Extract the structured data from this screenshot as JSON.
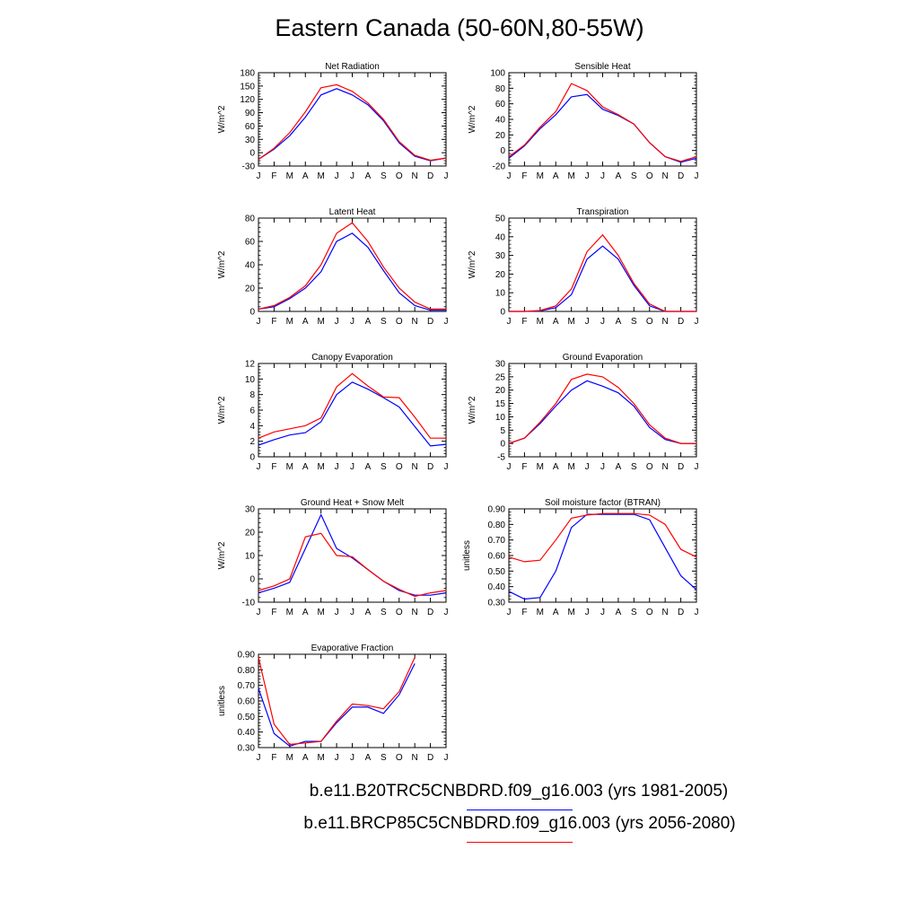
{
  "page": {
    "title": "Eastern Canada (50-60N,80-55W)"
  },
  "colors": {
    "series_0": "#0000ff",
    "series_1": "#ff0000"
  },
  "legend": [
    {
      "label": "b.e11.B20TRC5CNBDRD.f09_g16.003 (yrs 1981-2005)",
      "color": "#0000ff"
    },
    {
      "label": "b.e11.BRCP85C5CNBDRD.f09_g16.003 (yrs 2056-2080)",
      "color": "#ff0000"
    }
  ],
  "chart_data": [
    {
      "type": "line",
      "title": "Net Radiation",
      "ylabel": "W/m^2",
      "x": [
        "J",
        "F",
        "M",
        "A",
        "M",
        "J",
        "J",
        "A",
        "S",
        "O",
        "N",
        "D",
        "J"
      ],
      "ylim": [
        -30,
        180
      ],
      "yticks": [
        "-30",
        "0",
        "30",
        "60",
        "90",
        "120",
        "150",
        "180"
      ],
      "ytick_values": [
        -30,
        0,
        30,
        60,
        90,
        120,
        150,
        180
      ],
      "series": [
        {
          "values": [
            -15,
            8,
            38,
            80,
            130,
            144,
            130,
            108,
            72,
            22,
            -8,
            -18,
            -12
          ]
        },
        {
          "values": [
            -15,
            10,
            45,
            92,
            146,
            153,
            138,
            112,
            75,
            25,
            -6,
            -17,
            -12
          ]
        }
      ]
    },
    {
      "type": "line",
      "title": "Sensible Heat",
      "ylabel": "W/m^2",
      "x": [
        "J",
        "F",
        "M",
        "A",
        "M",
        "J",
        "J",
        "A",
        "S",
        "O",
        "N",
        "D",
        "J"
      ],
      "ylim": [
        -20,
        100
      ],
      "yticks": [
        "-20",
        "0",
        "20",
        "40",
        "60",
        "80",
        "100"
      ],
      "ytick_values": [
        -20,
        0,
        20,
        40,
        60,
        80,
        100
      ],
      "series": [
        {
          "values": [
            -10,
            6,
            28,
            46,
            69,
            72,
            53,
            45,
            34,
            10,
            -8,
            -15,
            -10
          ]
        },
        {
          "values": [
            -8,
            7,
            30,
            50,
            86,
            77,
            56,
            46,
            34,
            10,
            -8,
            -14,
            -8
          ]
        }
      ]
    },
    {
      "type": "line",
      "title": "Latent Heat",
      "ylabel": "W/m^2",
      "x": [
        "J",
        "F",
        "M",
        "A",
        "M",
        "J",
        "J",
        "A",
        "S",
        "O",
        "N",
        "D",
        "J"
      ],
      "ylim": [
        0,
        80
      ],
      "yticks": [
        "0",
        "20",
        "40",
        "60",
        "80"
      ],
      "ytick_values": [
        0,
        20,
        40,
        60,
        80
      ],
      "series": [
        {
          "values": [
            2,
            4,
            11,
            20,
            34,
            60,
            67,
            55,
            35,
            16,
            5,
            1,
            1
          ]
        },
        {
          "values": [
            2,
            5,
            12,
            22,
            40,
            67,
            76,
            60,
            38,
            20,
            8,
            2,
            2
          ]
        }
      ]
    },
    {
      "type": "line",
      "title": "Transpiration",
      "ylabel": "W/m^2",
      "x": [
        "J",
        "F",
        "M",
        "A",
        "M",
        "J",
        "J",
        "A",
        "S",
        "O",
        "N",
        "D",
        "J"
      ],
      "ylim": [
        0,
        50
      ],
      "yticks": [
        "0",
        "10",
        "20",
        "30",
        "40",
        "50"
      ],
      "ytick_values": [
        0,
        10,
        20,
        30,
        40,
        50
      ],
      "series": [
        {
          "values": [
            0,
            0,
            0.3,
            2,
            9,
            28,
            35,
            28,
            14,
            3,
            0,
            0,
            0
          ]
        },
        {
          "values": [
            0,
            0,
            0.5,
            3,
            12,
            32,
            41,
            30,
            15,
            4,
            0,
            0,
            0
          ]
        }
      ]
    },
    {
      "type": "line",
      "title": "Canopy Evaporation",
      "ylabel": "W/m^2",
      "x": [
        "J",
        "F",
        "M",
        "A",
        "M",
        "J",
        "J",
        "A",
        "S",
        "O",
        "N",
        "D",
        "J"
      ],
      "ylim": [
        0,
        12
      ],
      "yticks": [
        "0",
        "2",
        "4",
        "6",
        "8",
        "10",
        "12"
      ],
      "ytick_values": [
        0,
        2,
        4,
        6,
        8,
        10,
        12
      ],
      "series": [
        {
          "values": [
            1.5,
            2.2,
            2.8,
            3.1,
            4.5,
            8.0,
            9.6,
            8.7,
            7.6,
            6.4,
            3.9,
            1.4,
            1.6
          ]
        },
        {
          "values": [
            2.4,
            3.2,
            3.6,
            4.0,
            5.0,
            9.0,
            10.7,
            9.1,
            7.7,
            7.6,
            5.1,
            2.4,
            2.4
          ]
        }
      ]
    },
    {
      "type": "line",
      "title": "Ground Evaporation",
      "ylabel": "W/m^2",
      "x": [
        "J",
        "F",
        "M",
        "A",
        "M",
        "J",
        "J",
        "A",
        "S",
        "O",
        "N",
        "D",
        "J"
      ],
      "ylim": [
        -5,
        30
      ],
      "yticks": [
        "-5",
        "0",
        "5",
        "10",
        "15",
        "20",
        "25",
        "30"
      ],
      "ytick_values": [
        -5,
        0,
        5,
        10,
        15,
        20,
        25,
        30
      ],
      "series": [
        {
          "values": [
            0,
            2,
            7.5,
            14,
            20,
            23.5,
            21.5,
            19,
            14,
            6,
            1.5,
            0,
            0
          ]
        },
        {
          "values": [
            0,
            2,
            8,
            15,
            24,
            26,
            25,
            21,
            15,
            7,
            2,
            0,
            0
          ]
        }
      ]
    },
    {
      "type": "line",
      "title": "Ground Heat + Snow Melt",
      "ylabel": "W/m^2",
      "x": [
        "J",
        "F",
        "M",
        "A",
        "M",
        "J",
        "J",
        "A",
        "S",
        "O",
        "N",
        "D",
        "J"
      ],
      "ylim": [
        -10,
        30
      ],
      "yticks": [
        "-10",
        "0",
        "10",
        "20",
        "30"
      ],
      "ytick_values": [
        -10,
        0,
        10,
        20,
        30
      ],
      "series": [
        {
          "values": [
            -6,
            -4,
            -1.5,
            13,
            27.5,
            13,
            9,
            4,
            -1,
            -5,
            -7,
            -7,
            -6
          ]
        },
        {
          "values": [
            -5,
            -3,
            0,
            18,
            19.5,
            10,
            9.5,
            4,
            -1,
            -4.5,
            -7.5,
            -6,
            -5
          ]
        }
      ]
    },
    {
      "type": "line",
      "title": "Soil moisture factor (BTRAN)",
      "ylabel": "unitless",
      "x": [
        "J",
        "F",
        "M",
        "A",
        "M",
        "J",
        "J",
        "A",
        "S",
        "O",
        "N",
        "D",
        "J"
      ],
      "ylim": [
        0.3,
        0.9
      ],
      "yticks": [
        "0.30",
        "0.40",
        "0.50",
        "0.60",
        "0.70",
        "0.80",
        "0.90"
      ],
      "ytick_values": [
        0.3,
        0.4,
        0.5,
        0.6,
        0.7,
        0.8,
        0.9
      ],
      "series": [
        {
          "values": [
            0.37,
            0.32,
            0.33,
            0.5,
            0.78,
            0.865,
            0.865,
            0.865,
            0.865,
            0.83,
            0.65,
            0.47,
            0.38
          ]
        },
        {
          "values": [
            0.59,
            0.56,
            0.57,
            0.7,
            0.84,
            0.86,
            0.87,
            0.87,
            0.87,
            0.86,
            0.8,
            0.64,
            0.59
          ]
        }
      ]
    },
    {
      "type": "line",
      "title": "Evaporative Fraction",
      "ylabel": "unitless",
      "x": [
        "J",
        "F",
        "M",
        "A",
        "M",
        "J",
        "J",
        "A",
        "S",
        "O",
        "N",
        "D",
        "J"
      ],
      "ylim": [
        0.3,
        0.9
      ],
      "yticks": [
        "0.30",
        "0.40",
        "0.50",
        "0.60",
        "0.70",
        "0.80",
        "0.90"
      ],
      "ytick_values": [
        0.3,
        0.4,
        0.5,
        0.6,
        0.7,
        0.8,
        0.9
      ],
      "series": [
        {
          "values": [
            0.68,
            0.39,
            0.31,
            0.34,
            0.34,
            0.46,
            0.56,
            0.56,
            0.52,
            0.64,
            0.84,
            null,
            null
          ]
        },
        {
          "values": [
            0.88,
            0.45,
            0.32,
            0.33,
            0.34,
            0.47,
            0.58,
            0.57,
            0.55,
            0.66,
            0.88,
            null,
            null
          ]
        }
      ]
    }
  ]
}
